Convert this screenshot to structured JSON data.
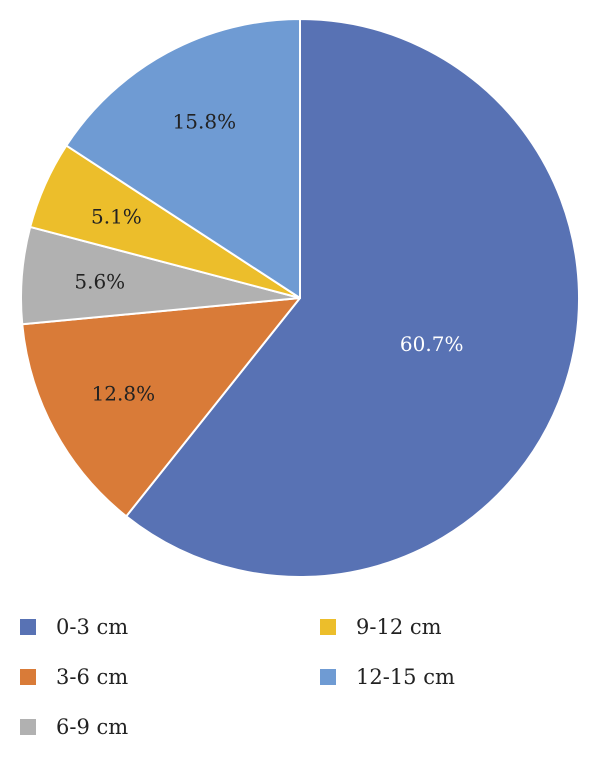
{
  "chart_data": {
    "type": "pie",
    "title": "",
    "legend_position": "bottom",
    "slices": [
      {
        "label": "0-3 cm",
        "value": 60.7,
        "value_label": "60.7%",
        "color": "#5872B4"
      },
      {
        "label": "3-6 cm",
        "value": 12.8,
        "value_label": "12.8%",
        "color": "#D97B38"
      },
      {
        "label": "6-9 cm",
        "value": 5.6,
        "value_label": "5.6%",
        "color": "#B1B1B1"
      },
      {
        "label": "9-12 cm",
        "value": 5.1,
        "value_label": "5.1%",
        "color": "#ECBE2B"
      },
      {
        "label": "12-15 cm",
        "value": 15.8,
        "value_label": "15.8%",
        "color": "#6F9BD3"
      }
    ],
    "label_colors": [
      "#ffffff",
      "#222222",
      "#222222",
      "#222222",
      "#222222"
    ]
  }
}
